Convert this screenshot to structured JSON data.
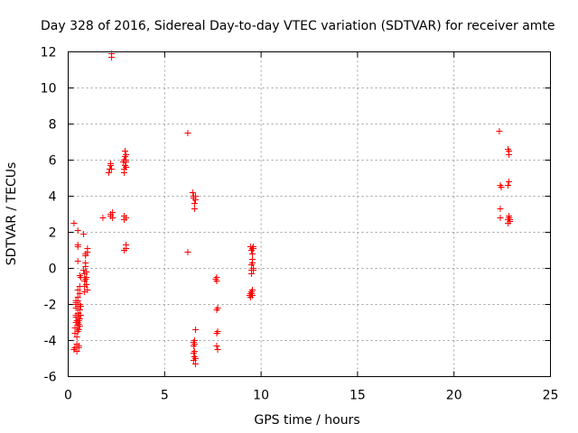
{
  "chart_data": {
    "type": "scatter",
    "title": "Day 328 of 2016, Sidereal Day-to-day VTEC variation (SDTVAR) for receiver amte",
    "xlabel": "GPS time / hours",
    "ylabel": "SDTVAR / TECUs",
    "xlim": [
      0,
      25
    ],
    "ylim": [
      -6,
      12
    ],
    "xticks": [
      0,
      5,
      10,
      15,
      20,
      25
    ],
    "yticks": [
      -6,
      -4,
      -2,
      0,
      2,
      4,
      6,
      8,
      10,
      12
    ],
    "grid": true,
    "marker": "+",
    "color": "#ff0000",
    "series": [
      {
        "name": "SDTVAR",
        "x": [
          0.3,
          0.3,
          0.35,
          0.35,
          0.35,
          0.4,
          0.4,
          0.4,
          0.4,
          0.4,
          0.4,
          0.4,
          0.45,
          0.45,
          0.45,
          0.45,
          0.45,
          0.5,
          0.5,
          0.5,
          0.5,
          0.5,
          0.5,
          0.5,
          0.55,
          0.55,
          0.55,
          0.55,
          0.55,
          0.55,
          0.6,
          0.6,
          0.6,
          0.6,
          0.6,
          0.6,
          0.6,
          0.65,
          0.65,
          0.65,
          0.5,
          0.5,
          0.5,
          0.5,
          0.8,
          0.85,
          0.85,
          0.85,
          0.85,
          0.9,
          0.9,
          0.9,
          0.9,
          0.95,
          0.95,
          0.95,
          1.0,
          1.0,
          1.0,
          0.95,
          0.9,
          0.8,
          1.8,
          2.1,
          2.15,
          2.2,
          2.2,
          2.25,
          2.25,
          2.25,
          2.3,
          2.3,
          2.2,
          2.2,
          2.85,
          2.9,
          2.95,
          2.9,
          2.9,
          2.95,
          2.95,
          3.0,
          3.0,
          3.0,
          3.0,
          2.9,
          2.9,
          2.9,
          3.0,
          3.0,
          3.0,
          6.2,
          6.2,
          6.45,
          6.5,
          6.5,
          6.55,
          6.55,
          6.6,
          6.6,
          6.6,
          6.5,
          6.5,
          6.55,
          6.55,
          6.6,
          6.6,
          6.5,
          6.5,
          6.55,
          6.55,
          7.65,
          7.7,
          7.7,
          7.7,
          7.75,
          7.75,
          7.7,
          7.7,
          7.75,
          9.4,
          9.45,
          9.45,
          9.5,
          9.5,
          9.55,
          9.55,
          9.6,
          9.6,
          9.5,
          9.5,
          9.55,
          9.55,
          9.6,
          9.5,
          9.55,
          9.45,
          9.5,
          9.55,
          9.6,
          9.5,
          9.6,
          22.35,
          22.4,
          22.45,
          22.4,
          22.4,
          22.8,
          22.85,
          22.9,
          22.8,
          22.85,
          22.85,
          22.8,
          22.85,
          22.85,
          22.8,
          22.9
        ],
        "y": [
          2.5,
          -4.5,
          -4.4,
          -3.6,
          -3.3,
          -3.0,
          -2.6,
          -2.2,
          -1.8,
          -1.9,
          -2.0,
          -2.7,
          -2.9,
          -3.3,
          -3.8,
          -4.2,
          -4.6,
          -3.5,
          -3.0,
          -2.5,
          -2.1,
          -1.6,
          -1.2,
          -1.8,
          -2.6,
          -2.9,
          -3.1,
          -4.3,
          -4.4,
          -3.4,
          -2.0,
          -2.3,
          -2.8,
          -3.2,
          -1.4,
          -1.0,
          -0.4,
          -2.6,
          -2.1,
          -0.5,
          1.3,
          1.2,
          0.4,
          2.1,
          1.9,
          -1.3,
          -1.0,
          -0.7,
          -0.3,
          0.1,
          0.7,
          0.8,
          0.3,
          -0.2,
          -0.5,
          -0.9,
          1.1,
          0.9,
          -1.2,
          -0.9,
          -0.6,
          -0.1,
          2.8,
          5.3,
          5.5,
          5.7,
          5.8,
          11.7,
          11.9,
          5.5,
          3.1,
          2.8,
          2.9,
          3.0,
          5.9,
          6.0,
          6.2,
          5.3,
          5.5,
          5.7,
          6.5,
          6.0,
          6.3,
          5.9,
          5.6,
          2.7,
          2.9,
          1.0,
          1.1,
          1.3,
          2.8,
          7.5,
          0.9,
          4.2,
          4.0,
          3.9,
          3.6,
          3.3,
          3.8,
          4.0,
          -3.4,
          -4.1,
          -4.3,
          -4.6,
          -4.9,
          -5.0,
          -5.3,
          -4.7,
          -5.1,
          -4.0,
          -4.2,
          -0.6,
          -0.5,
          -0.7,
          -2.3,
          -2.2,
          -3.5,
          -3.6,
          -4.3,
          -4.5,
          -1.5,
          -1.4,
          -1.6,
          -1.4,
          -1.3,
          -1.5,
          -1.2,
          -0.1,
          0.0,
          -0.1,
          -0.3,
          0.3,
          0.5,
          0.0,
          1.0,
          1.1,
          1.2,
          1.0,
          0.8,
          1.1,
          0.2,
          1.2,
          7.6,
          4.6,
          4.5,
          3.3,
          2.8,
          2.7,
          2.9,
          2.6,
          2.5,
          2.8,
          4.8,
          4.6,
          6.5,
          6.3,
          6.6,
          2.7
        ]
      }
    ]
  }
}
